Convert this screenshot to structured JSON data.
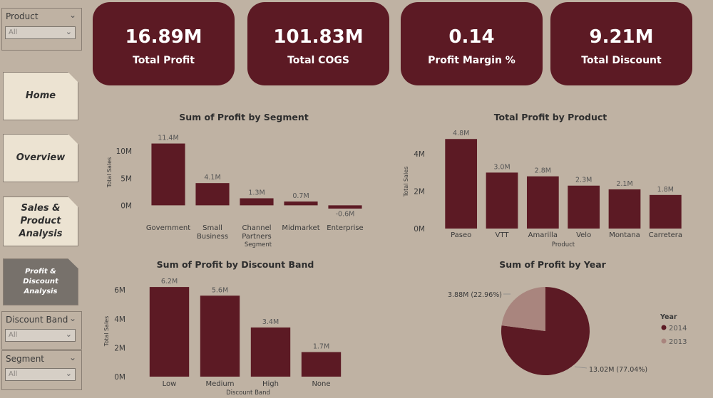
{
  "slicers": {
    "product": {
      "title": "Product",
      "value": "All"
    },
    "discount_band": {
      "title": "Discount Band",
      "value": "All"
    },
    "segment": {
      "title": "Segment",
      "value": "All"
    }
  },
  "nav": {
    "home": "Home",
    "overview": "Overview",
    "sales_product": "Sales & Product Analysis",
    "profit_discount": "Profit & Discount Analysis"
  },
  "kpis": [
    {
      "value": "16.89M",
      "label": "Total Profit"
    },
    {
      "value": "101.83M",
      "label": "Total COGS"
    },
    {
      "value": "0.14",
      "label": "Profit Margin %"
    },
    {
      "value": "9.21M",
      "label": "Total Discount"
    }
  ],
  "colors": {
    "bar": "#5c1a24",
    "pie_2013": "#a9857e",
    "pie_2014": "#5c1a24"
  },
  "chart_data": [
    {
      "type": "bar",
      "title": "Sum of Profit by Segment",
      "xlabel": "Segment",
      "ylabel": "Total Sales",
      "categories": [
        "Government",
        "Small Business",
        "Channel Partners",
        "Midmarket",
        "Enterprise"
      ],
      "values": [
        11.4,
        4.1,
        1.3,
        0.7,
        -0.6
      ],
      "data_labels": [
        "11.4M",
        "4.1M",
        "1.3M",
        "0.7M",
        "-0.6M"
      ],
      "yticks": [
        0,
        5,
        10
      ],
      "ytick_labels": [
        "0M",
        "5M",
        "10M"
      ],
      "ylim": [
        -1,
        12
      ]
    },
    {
      "type": "bar",
      "title": "Total Profit by Product",
      "xlabel": "Product",
      "ylabel": "Total Sales",
      "categories": [
        "Paseo",
        "VTT",
        "Amarilla",
        "Velo",
        "Montana",
        "Carretera"
      ],
      "values": [
        4.8,
        3.0,
        2.8,
        2.3,
        2.1,
        1.8
      ],
      "data_labels": [
        "4.8M",
        "3.0M",
        "2.8M",
        "2.3M",
        "2.1M",
        "1.8M"
      ],
      "yticks": [
        0,
        2,
        4
      ],
      "ytick_labels": [
        "0M",
        "2M",
        "4M"
      ],
      "ylim": [
        0,
        5
      ]
    },
    {
      "type": "bar",
      "title": "Sum of Profit by Discount Band",
      "xlabel": "Discount Band",
      "ylabel": "Total Sales",
      "categories": [
        "Low",
        "Medium",
        "High",
        "None"
      ],
      "values": [
        6.2,
        5.6,
        3.4,
        1.7
      ],
      "data_labels": [
        "6.2M",
        "5.6M",
        "3.4M",
        "1.7M"
      ],
      "yticks": [
        0,
        2,
        4,
        6
      ],
      "ytick_labels": [
        "0M",
        "2M",
        "4M",
        "6M"
      ],
      "ylim": [
        0,
        6.5
      ]
    },
    {
      "type": "pie",
      "title": "Sum of Profit by Year",
      "legend_title": "Year",
      "slices": [
        {
          "label": "2014",
          "value": 13.02,
          "text": "13.02M (77.04%)",
          "color": "#5c1a24"
        },
        {
          "label": "2013",
          "value": 3.88,
          "text": "3.88M (22.96%)",
          "color": "#a9857e"
        }
      ]
    }
  ]
}
